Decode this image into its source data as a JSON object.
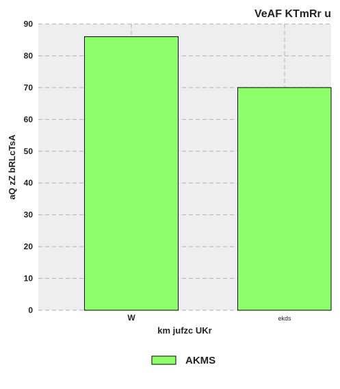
{
  "chart_data": {
    "type": "bar",
    "title": "VeAF KTmRr u",
    "xlabel": "km jufzc UKr",
    "ylabel": "aQ zZ  bRLcTsA",
    "categories": [
      "W",
      "ekds"
    ],
    "series": [
      {
        "name": "AKMS",
        "values": [
          86,
          70
        ],
        "color": "#8eff6a"
      }
    ],
    "ylim": [
      0,
      90
    ],
    "yticks": [
      0,
      10,
      20,
      30,
      40,
      50,
      60,
      70,
      80,
      90
    ],
    "grid": true,
    "legend_position": "bottom-center",
    "colors": {
      "plot_background": "#eeeeee",
      "grid": "#b0b0b0",
      "bar_edge": "#000000"
    }
  }
}
